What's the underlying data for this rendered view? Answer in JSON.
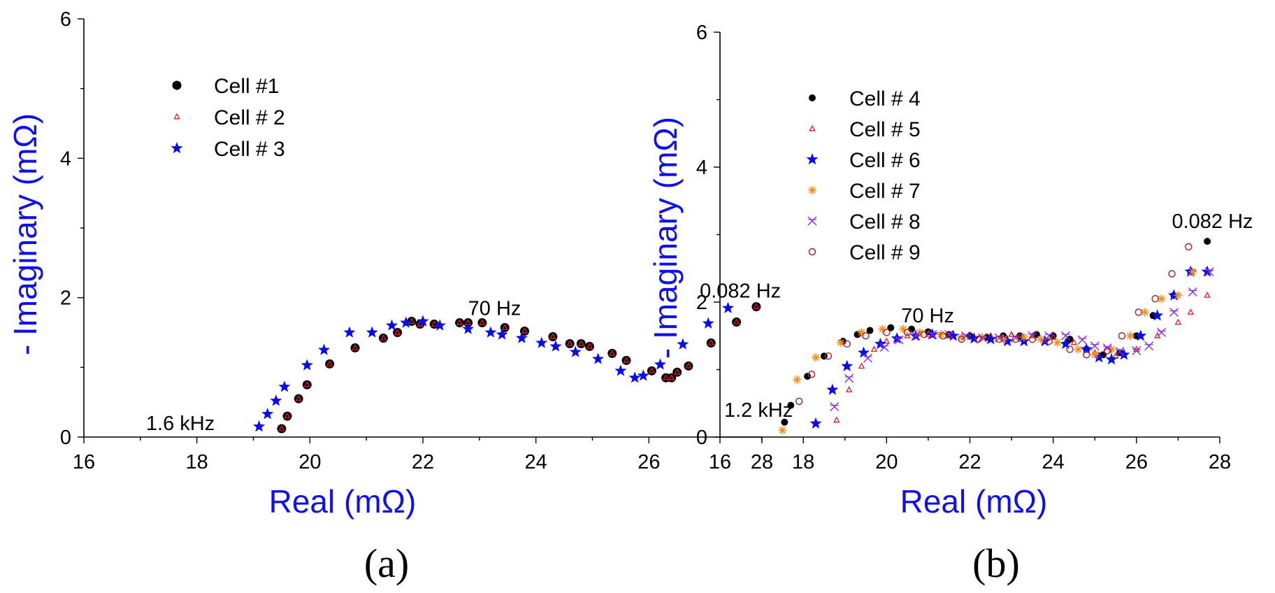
{
  "chart_data": [
    {
      "type": "scatter",
      "panel_label": "(a)",
      "xlabel": "Real (mΩ)",
      "ylabel": "- Imaginary (mΩ)",
      "xlim": [
        16,
        28
      ],
      "ylim": [
        0,
        6
      ],
      "xticks": [
        "16",
        "18",
        "20",
        "22",
        "24",
        "26",
        "28"
      ],
      "yticks": [
        "0",
        "2",
        "4",
        "6"
      ],
      "legend": "top-left",
      "annotations": [
        {
          "text": "1.6 kHz",
          "x": 17.1,
          "y": 0.1
        },
        {
          "text": "70 Hz",
          "x": 22.8,
          "y": 1.75
        },
        {
          "text": "0.082 Hz",
          "x": 26.9,
          "y": 2.0
        }
      ],
      "series": [
        {
          "name": "Cell #1",
          "color": "#000000",
          "marker": "circle",
          "x": [
            19.5,
            19.6,
            19.8,
            19.95,
            20.35,
            20.8,
            21.3,
            21.55,
            21.8,
            21.95,
            22.2,
            22.65,
            22.8,
            23.05,
            23.45,
            23.8,
            24.3,
            24.6,
            24.8,
            24.95,
            25.35,
            25.6,
            26.05,
            26.3,
            26.4,
            26.5,
            26.7,
            27.1,
            27.55,
            27.9
          ],
          "y": [
            0.12,
            0.3,
            0.55,
            0.75,
            1.05,
            1.28,
            1.42,
            1.5,
            1.66,
            1.62,
            1.62,
            1.64,
            1.64,
            1.64,
            1.57,
            1.52,
            1.44,
            1.34,
            1.34,
            1.3,
            1.2,
            1.1,
            0.95,
            0.85,
            0.85,
            0.93,
            1.02,
            1.35,
            1.65,
            1.87
          ]
        },
        {
          "name": "Cell # 2",
          "color": "#e8191c",
          "marker": "triangle",
          "x": [
            19.5,
            19.6,
            19.8,
            19.95,
            20.35,
            20.8,
            21.3,
            21.55,
            21.8,
            21.95,
            22.2,
            22.65,
            22.8,
            23.05,
            23.45,
            23.8,
            24.3,
            24.6,
            24.8,
            24.95,
            25.35,
            25.6,
            26.05,
            26.3,
            26.4,
            26.5,
            26.7,
            27.1,
            27.55,
            27.9
          ],
          "y": [
            0.12,
            0.3,
            0.55,
            0.75,
            1.05,
            1.28,
            1.42,
            1.5,
            1.66,
            1.62,
            1.62,
            1.64,
            1.64,
            1.64,
            1.57,
            1.52,
            1.44,
            1.34,
            1.34,
            1.3,
            1.2,
            1.1,
            0.95,
            0.85,
            0.85,
            0.93,
            1.02,
            1.35,
            1.65,
            1.87
          ]
        },
        {
          "name": "Cell # 3",
          "color": "#0a0aee",
          "marker": "star",
          "x": [
            19.1,
            19.25,
            19.4,
            19.55,
            19.95,
            20.25,
            20.7,
            21.1,
            21.45,
            21.7,
            22.0,
            22.3,
            22.8,
            23.2,
            23.4,
            23.75,
            24.1,
            24.35,
            24.7,
            25.1,
            25.5,
            25.75,
            25.9,
            26.2,
            26.6,
            27.05,
            27.4
          ],
          "y": [
            0.15,
            0.33,
            0.52,
            0.72,
            1.03,
            1.25,
            1.5,
            1.5,
            1.6,
            1.64,
            1.66,
            1.6,
            1.55,
            1.5,
            1.47,
            1.42,
            1.35,
            1.3,
            1.22,
            1.12,
            0.95,
            0.85,
            0.88,
            1.04,
            1.33,
            1.63,
            1.85
          ]
        }
      ]
    },
    {
      "type": "scatter",
      "panel_label": "(b)",
      "xlabel": "Real (mΩ)",
      "ylabel": "- Imaginary (mΩ)",
      "xlim": [
        16,
        28
      ],
      "ylim": [
        0,
        6
      ],
      "xticks": [
        "16",
        "18",
        "20",
        "22",
        "24",
        "26",
        "28"
      ],
      "yticks": [
        "0",
        "2",
        "4",
        "6"
      ],
      "legend": "top-left",
      "annotations": [
        {
          "text": "1.2 kHz",
          "x": 16.1,
          "y": 0.3
        },
        {
          "text": "70 Hz",
          "x": 20.35,
          "y": 1.7
        },
        {
          "text": "0.082 Hz",
          "x": 26.85,
          "y": 3.1
        }
      ],
      "series": [
        {
          "name": "Cell # 4",
          "color": "#000000",
          "marker": "dot",
          "x": [
            17.55,
            17.7,
            18.1,
            18.5,
            18.95,
            19.3,
            19.6,
            20.1,
            20.6,
            21.0,
            21.5,
            22.0,
            22.4,
            22.8,
            23.2,
            23.6,
            24.0,
            24.4,
            24.8,
            25.2,
            25.6,
            26.0,
            26.4,
            26.9,
            27.3,
            27.7
          ],
          "y": [
            0.22,
            0.47,
            0.9,
            1.2,
            1.42,
            1.52,
            1.58,
            1.62,
            1.6,
            1.56,
            1.52,
            1.5,
            1.48,
            1.5,
            1.5,
            1.52,
            1.5,
            1.45,
            1.3,
            1.22,
            1.25,
            1.5,
            1.8,
            2.1,
            2.45,
            2.9
          ]
        },
        {
          "name": "Cell # 5",
          "color": "#e8191c",
          "marker": "triangle",
          "x": [
            18.8,
            19.1,
            19.4,
            19.7,
            20.0,
            20.5,
            21.0,
            21.5,
            22.0,
            22.5,
            23.0,
            23.5,
            24.0,
            24.5,
            25.0,
            25.5,
            26.0,
            26.5,
            27.0,
            27.3,
            27.7
          ],
          "y": [
            0.25,
            0.7,
            1.05,
            1.3,
            1.42,
            1.5,
            1.52,
            1.5,
            1.48,
            1.5,
            1.52,
            1.5,
            1.48,
            1.4,
            1.25,
            1.2,
            1.3,
            1.5,
            1.7,
            1.85,
            2.1
          ]
        },
        {
          "name": "Cell # 6",
          "color": "#0a0aee",
          "marker": "star",
          "x": [
            18.3,
            18.7,
            19.05,
            19.45,
            19.85,
            20.25,
            20.7,
            21.1,
            21.6,
            22.1,
            22.5,
            22.9,
            23.3,
            23.8,
            24.3,
            24.8,
            25.1,
            25.4,
            25.7,
            26.1,
            26.5,
            26.9,
            27.3,
            27.7
          ],
          "y": [
            0.2,
            0.7,
            1.05,
            1.25,
            1.38,
            1.46,
            1.5,
            1.52,
            1.5,
            1.46,
            1.45,
            1.42,
            1.42,
            1.42,
            1.38,
            1.3,
            1.18,
            1.15,
            1.22,
            1.5,
            1.8,
            2.1,
            2.45,
            2.45
          ]
        },
        {
          "name": "Cell # 7",
          "color": "#ff8b1c",
          "marker": "asterisk",
          "x": [
            17.5,
            17.85,
            18.3,
            18.9,
            19.4,
            19.9,
            20.4,
            20.8,
            21.3,
            21.8,
            22.3,
            22.8,
            23.3,
            23.7,
            24.1,
            24.6,
            25.0,
            25.4,
            25.85,
            26.2,
            26.6,
            27.0,
            27.35
          ],
          "y": [
            0.1,
            0.85,
            1.18,
            1.4,
            1.55,
            1.6,
            1.6,
            1.55,
            1.52,
            1.48,
            1.48,
            1.45,
            1.48,
            1.45,
            1.4,
            1.3,
            1.22,
            1.3,
            1.5,
            1.85,
            2.05,
            2.1,
            2.45
          ]
        },
        {
          "name": "Cell # 8",
          "color": "#8a2be2",
          "marker": "cross",
          "x": [
            18.75,
            19.1,
            19.55,
            19.95,
            20.3,
            20.7,
            21.1,
            21.5,
            21.9,
            22.3,
            22.7,
            23.1,
            23.5,
            23.9,
            24.3,
            24.7,
            25.0,
            25.3,
            25.6,
            26.0,
            26.3,
            26.6,
            26.9,
            27.35,
            27.75
          ],
          "y": [
            0.45,
            0.87,
            1.17,
            1.33,
            1.44,
            1.5,
            1.52,
            1.52,
            1.5,
            1.47,
            1.47,
            1.47,
            1.5,
            1.5,
            1.5,
            1.44,
            1.35,
            1.32,
            1.27,
            1.28,
            1.35,
            1.55,
            1.85,
            2.15,
            2.45
          ]
        },
        {
          "name": "Cell # 9",
          "color": "#a52a2a",
          "marker": "open-circle",
          "x": [
            17.9,
            18.2,
            18.6,
            19.05,
            19.5,
            20.0,
            20.5,
            20.9,
            21.35,
            21.8,
            22.2,
            22.7,
            23.1,
            23.5,
            23.9,
            24.4,
            24.8,
            25.3,
            25.65,
            26.05,
            26.45,
            26.85,
            27.25
          ],
          "y": [
            0.53,
            0.93,
            1.2,
            1.38,
            1.5,
            1.55,
            1.55,
            1.52,
            1.5,
            1.45,
            1.45,
            1.45,
            1.45,
            1.45,
            1.42,
            1.3,
            1.22,
            1.28,
            1.5,
            1.85,
            2.05,
            2.42,
            2.82
          ]
        }
      ]
    }
  ]
}
